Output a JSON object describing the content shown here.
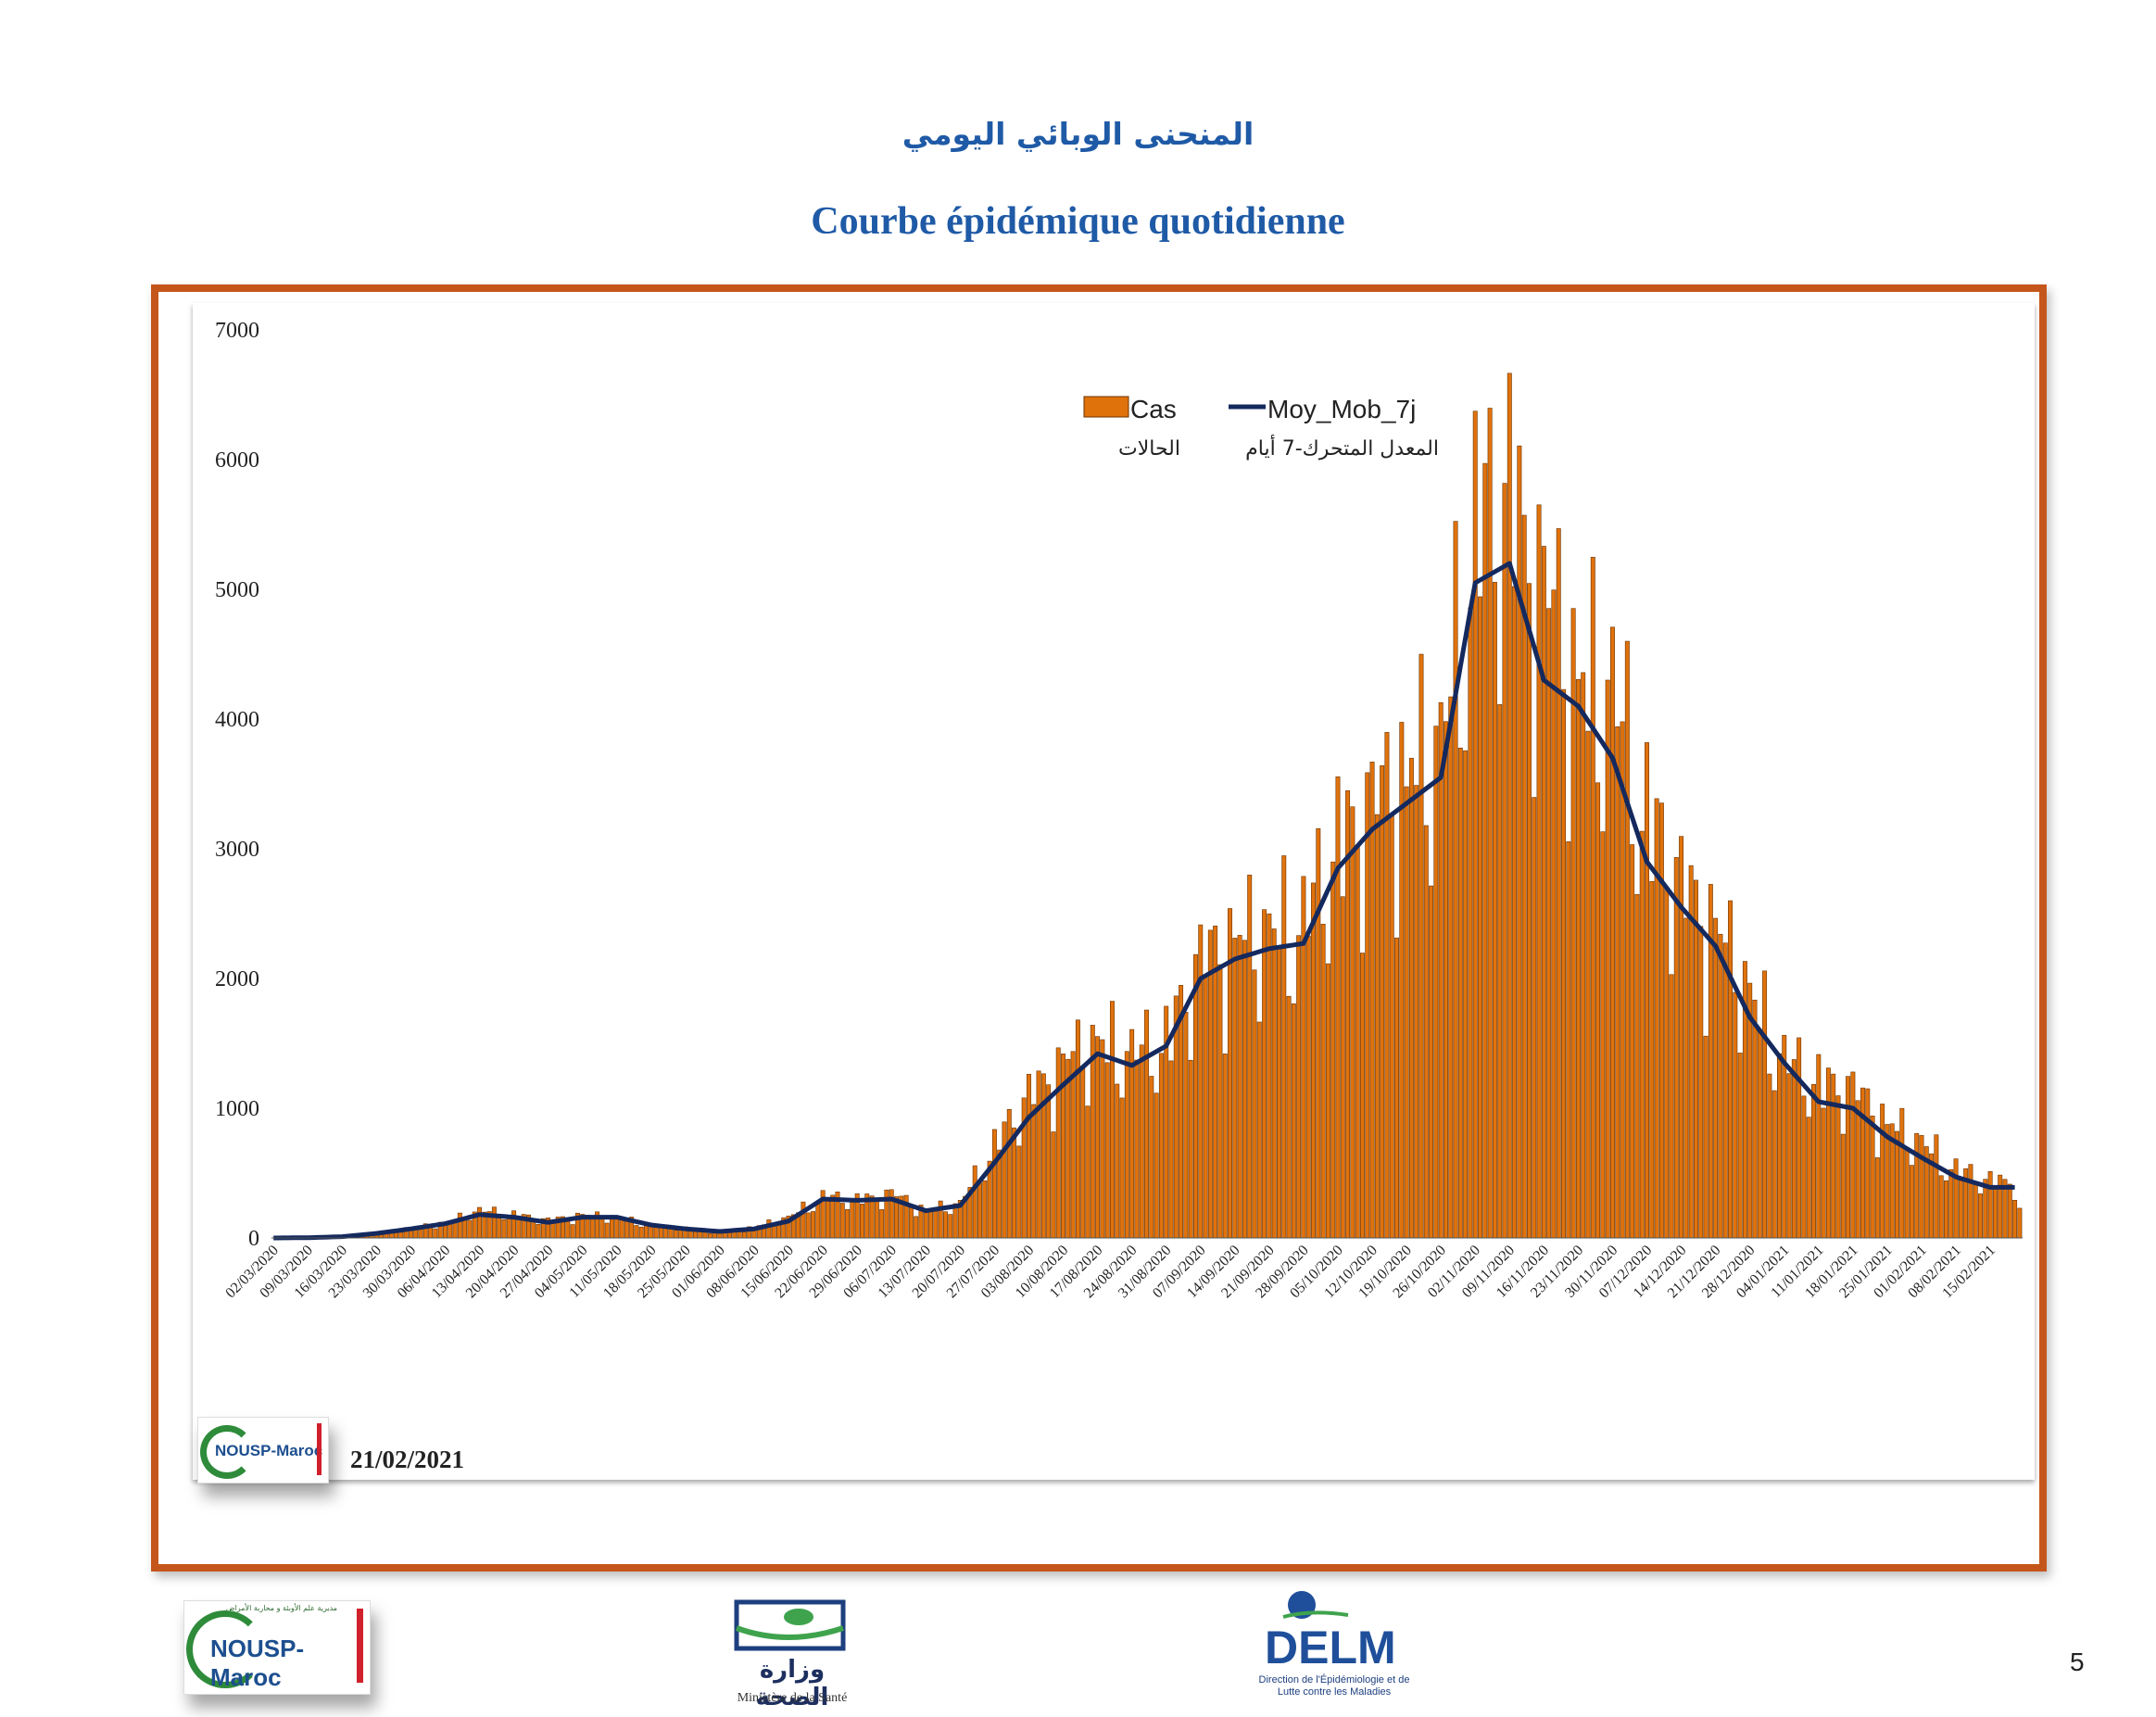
{
  "header": {
    "title_ar": "المنحنى الوبائي اليومي",
    "title_fr": "Courbe épidémique quotidienne"
  },
  "footer": {
    "date": "21/02/2021",
    "page_number": "5",
    "logo_nousp": "NOUSP-Maroc",
    "logo_nousp_ar": "مديرية علم الأوبئة و محاربة الأمراض",
    "ministry_ar": "وزارة الصحة",
    "ministry_fr": "Ministère de la Santé",
    "delm": "DELM",
    "delm_sub": "Direction de l'Épidémiologie et de Lutte contre les Maladies"
  },
  "colors": {
    "frame": "#c5561b",
    "bar": "#e0720c",
    "line": "#14295e",
    "title": "#1f5aa6"
  },
  "chart_data": {
    "type": "bar",
    "legend": {
      "placement": "top-center",
      "bar_label": "Cas",
      "bar_label_ar": "الحالات",
      "line_label": "Moy_Mob_7j",
      "line_label_ar": "المعدل المتحرك-7 أيام"
    },
    "ylim": [
      0,
      7000
    ],
    "y_ticks": [
      0,
      1000,
      2000,
      3000,
      4000,
      5000,
      6000,
      7000
    ],
    "x_tick_labels": [
      "02/03/2020",
      "09/03/2020",
      "16/03/2020",
      "23/03/2020",
      "30/03/2020",
      "06/04/2020",
      "13/04/2020",
      "20/04/2020",
      "27/04/2020",
      "04/05/2020",
      "11/05/2020",
      "18/05/2020",
      "25/05/2020",
      "01/06/2020",
      "08/06/2020",
      "15/06/2020",
      "22/06/2020",
      "29/06/2020",
      "06/07/2020",
      "13/07/2020",
      "20/07/2020",
      "27/07/2020",
      "03/08/2020",
      "10/08/2020",
      "17/08/2020",
      "24/08/2020",
      "31/08/2020",
      "07/09/2020",
      "14/09/2020",
      "21/09/2020",
      "28/09/2020",
      "05/10/2020",
      "12/10/2020",
      "19/10/2020",
      "26/10/2020",
      "02/11/2020",
      "09/11/2020",
      "16/11/2020",
      "23/11/2020",
      "30/11/2020",
      "07/12/2020",
      "14/12/2020",
      "21/12/2020",
      "28/12/2020",
      "04/01/2021",
      "11/01/2021",
      "18/01/2021",
      "25/01/2021",
      "01/02/2021",
      "08/02/2021",
      "15/02/2021"
    ],
    "weekly_anchor_cases": [
      0,
      2,
      10,
      40,
      75,
      110,
      200,
      170,
      130,
      170,
      150,
      90,
      70,
      40,
      80,
      150,
      300,
      280,
      330,
      200,
      250,
      680,
      1050,
      1300,
      1450,
      1350,
      1450,
      2050,
      2200,
      2250,
      2300,
      2900,
      3200,
      3450,
      3600,
      5200,
      5500,
      4800,
      4100,
      4000,
      3100,
      2600,
      2300,
      1800,
      1300,
      1150,
      1100,
      850,
      700,
      500,
      420
    ],
    "weekly_moving_average": [
      0,
      2,
      10,
      35,
      70,
      110,
      180,
      160,
      120,
      160,
      160,
      100,
      70,
      50,
      70,
      130,
      300,
      290,
      300,
      210,
      250,
      580,
      930,
      1180,
      1420,
      1330,
      1480,
      2000,
      2150,
      2230,
      2270,
      2850,
      3150,
      3350,
      3550,
      5050,
      5200,
      4300,
      4100,
      3700,
      2900,
      2550,
      2250,
      1700,
      1350,
      1050,
      1000,
      780,
      620,
      470,
      390
    ],
    "last_value": 200
  }
}
